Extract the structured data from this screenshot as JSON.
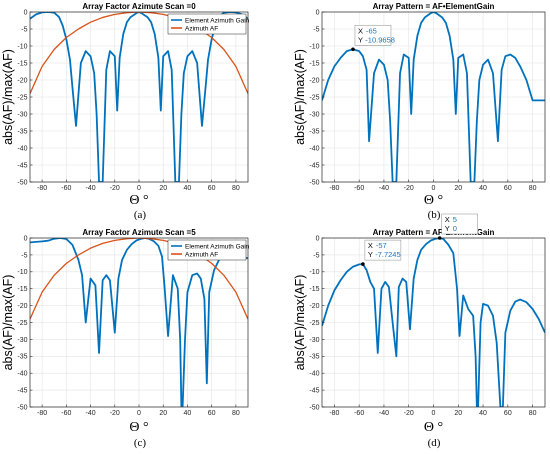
{
  "chart_data": [
    {
      "type": "line",
      "panel_label": "(a)",
      "title": "Array Factor Azimute Scan =0",
      "xlabel": "Θ °",
      "ylabel": "abs(AF)/max(AF)",
      "xlim": [
        -90,
        90
      ],
      "ylim": [
        -50,
        0
      ],
      "xticks": [
        -80,
        -60,
        -40,
        -20,
        0,
        20,
        40,
        60,
        80
      ],
      "yticks": [
        0,
        -5,
        -10,
        -15,
        -20,
        -25,
        -30,
        -35,
        -40,
        -45,
        -50
      ],
      "grid": true,
      "legend_position": "top-right",
      "series": [
        {
          "name": "Element Azimuth Gain",
          "color": "#0072BD",
          "x": [
            -90,
            -85,
            -80,
            -75,
            -70,
            -66,
            -63,
            -60,
            -57,
            -55,
            -52,
            -48,
            -44,
            -40,
            -37,
            -35,
            -33,
            -32,
            -30,
            -27,
            -24,
            -20,
            -18,
            -16,
            -13,
            -10,
            -7,
            -4,
            -2,
            0,
            2,
            4,
            7,
            10,
            13,
            16,
            18,
            20,
            24,
            27,
            30,
            32,
            33,
            35,
            37,
            40,
            44,
            48,
            52,
            55,
            57,
            60,
            63,
            66,
            70,
            75,
            80,
            85,
            90
          ],
          "y": [
            -2,
            -0.7,
            -0.1,
            0,
            -0.2,
            -1.5,
            -4,
            -8,
            -14,
            -22,
            -33.5,
            -15,
            -11.5,
            -13,
            -18,
            -30,
            -50,
            -50,
            -50,
            -17,
            -11.5,
            -13,
            -29,
            -13.5,
            -6.5,
            -3,
            -1.5,
            -0.8,
            -0.3,
            0,
            -0.3,
            -0.8,
            -1.5,
            -3,
            -6.5,
            -13.5,
            -29,
            -13,
            -11.5,
            -17,
            -50,
            -50,
            -50,
            -30,
            -18,
            -13,
            -11.5,
            -15,
            -33.5,
            -22,
            -14,
            -8,
            -4,
            -1.5,
            -0.2,
            0,
            -0.1,
            -0.7,
            -2
          ]
        },
        {
          "name": "Azimuth AF",
          "color": "#D95319",
          "x": [
            -90,
            -80,
            -70,
            -60,
            -50,
            -40,
            -30,
            -20,
            -10,
            0,
            10,
            20,
            30,
            40,
            50,
            60,
            70,
            80,
            90
          ],
          "y": [
            -24,
            -16,
            -11,
            -7.5,
            -5,
            -3,
            -1.6,
            -0.7,
            -0.2,
            0,
            -0.2,
            -0.7,
            -1.6,
            -3,
            -5,
            -7.5,
            -11,
            -16,
            -24
          ]
        }
      ]
    },
    {
      "type": "line",
      "panel_label": "(b)",
      "title": "Array Pattern = AF•ElementGain",
      "xlabel": "Θ °",
      "ylabel": "abs(AF)/max(AF)",
      "xlim": [
        -90,
        90
      ],
      "ylim": [
        -50,
        0
      ],
      "xticks": [
        -80,
        -60,
        -40,
        -20,
        0,
        20,
        40,
        60,
        80
      ],
      "yticks": [
        0,
        -5,
        -10,
        -15,
        -20,
        -25,
        -30,
        -35,
        -40,
        -45,
        -50
      ],
      "grid": true,
      "series": [
        {
          "name": "",
          "color": "#0072BD",
          "x": [
            -90,
            -85,
            -80,
            -75,
            -70,
            -65,
            -60,
            -57,
            -54,
            -52,
            -48,
            -44,
            -40,
            -37,
            -35,
            -33,
            -32,
            -30,
            -27,
            -24,
            -20,
            -18,
            -16,
            -13,
            -10,
            -7,
            -4,
            -2,
            0,
            2,
            4,
            7,
            10,
            13,
            16,
            18,
            20,
            24,
            27,
            30,
            32,
            33,
            35,
            37,
            40,
            44,
            48,
            52,
            55,
            58,
            62,
            66,
            70,
            75,
            80,
            85,
            90
          ],
          "y": [
            -26,
            -20,
            -16,
            -13.5,
            -11.5,
            -10.97,
            -11.5,
            -13,
            -17,
            -38,
            -18,
            -14,
            -15.5,
            -20,
            -32,
            -50,
            -50,
            -50,
            -18,
            -12.5,
            -13.5,
            -30,
            -14,
            -7,
            -3.2,
            -1.6,
            -0.8,
            -0.3,
            0,
            -0.3,
            -0.8,
            -1.6,
            -3.2,
            -7,
            -14,
            -30,
            -13.5,
            -12.5,
            -18,
            -50,
            -50,
            -50,
            -32,
            -20,
            -15.5,
            -14,
            -18,
            -38,
            -17,
            -13,
            -12.5,
            -13.5,
            -16,
            -20,
            -26,
            -26,
            -26
          ]
        }
      ],
      "datatip": {
        "x_label": "X",
        "x_value": "-65",
        "y_label": "Y",
        "y_value": "-10.9658",
        "px": -65,
        "py": -10.9658
      }
    },
    {
      "type": "line",
      "panel_label": "(c)",
      "title": "Array Factor Azimute Scan =5",
      "xlabel": "Θ °",
      "ylabel": "abs(AF)/max(AF)",
      "xlim": [
        -90,
        90
      ],
      "ylim": [
        -50,
        0
      ],
      "xticks": [
        -80,
        -60,
        -40,
        -20,
        0,
        20,
        40,
        60,
        80
      ],
      "yticks": [
        0,
        -5,
        -10,
        -15,
        -20,
        -25,
        -30,
        -35,
        -40,
        -45,
        -50
      ],
      "grid": true,
      "legend_position": "top-right",
      "series": [
        {
          "name": "Element Azimuth Gain",
          "color": "#0072BD",
          "x": [
            -90,
            -80,
            -75,
            -70,
            -65,
            -60,
            -55,
            -50,
            -47,
            -44,
            -40,
            -36,
            -33,
            -30,
            -27,
            -24,
            -20,
            -17,
            -14,
            -10,
            -6,
            -2,
            2,
            5,
            8,
            12,
            16,
            19,
            21,
            24,
            28,
            32,
            34,
            35,
            36,
            38,
            40,
            44,
            48,
            51,
            54,
            56,
            58,
            62,
            66,
            70,
            75,
            80,
            85,
            90
          ],
          "y": [
            -1.3,
            -1,
            -0.8,
            -0.2,
            0,
            -0.3,
            -2,
            -6.5,
            -11,
            -25,
            -12,
            -14,
            -34,
            -12.5,
            -11,
            -12.5,
            -28,
            -12,
            -6.5,
            -3.5,
            -1.8,
            -0.7,
            -0.2,
            0,
            -0.2,
            -0.9,
            -2.3,
            -5.5,
            -14,
            -29,
            -11,
            -15,
            -30,
            -50,
            -50,
            -30,
            -16,
            -11,
            -10.5,
            -12,
            -18,
            -43,
            -16,
            -9.5,
            -6.5,
            -4.5,
            -4,
            -4.5,
            -5.5,
            -6
          ]
        },
        {
          "name": "Azimuth AF",
          "color": "#D95319",
          "x": [
            -90,
            -80,
            -70,
            -60,
            -50,
            -40,
            -30,
            -20,
            -10,
            0,
            10,
            20,
            30,
            40,
            50,
            60,
            70,
            80,
            90
          ],
          "y": [
            -24,
            -16,
            -11,
            -7.5,
            -5,
            -3,
            -1.6,
            -0.7,
            -0.2,
            0,
            -0.2,
            -0.7,
            -1.6,
            -3,
            -5,
            -7.5,
            -11,
            -16,
            -24
          ]
        }
      ]
    },
    {
      "type": "line",
      "panel_label": "(d)",
      "title": "Array Pattern = AF•ElementGain",
      "xlabel": "Θ °",
      "ylabel": "abs(AF)/max(AF)",
      "xlim": [
        -90,
        90
      ],
      "ylim": [
        -50,
        0
      ],
      "xticks": [
        -80,
        -60,
        -40,
        -20,
        0,
        20,
        40,
        60,
        80
      ],
      "yticks": [
        0,
        -5,
        -10,
        -15,
        -20,
        -25,
        -30,
        -35,
        -40,
        -45,
        -50
      ],
      "grid": true,
      "series": [
        {
          "name": "",
          "color": "#0072BD",
          "x": [
            -90,
            -85,
            -80,
            -75,
            -70,
            -65,
            -60,
            -57,
            -54,
            -51,
            -48,
            -45,
            -42,
            -39,
            -36,
            -33,
            -30,
            -28,
            -25,
            -22,
            -19,
            -16,
            -13,
            -10,
            -6,
            -2,
            2,
            5,
            8,
            12,
            16,
            19,
            21,
            24,
            28,
            32,
            34,
            35,
            36,
            38,
            40,
            44,
            48,
            51,
            54,
            56,
            58,
            62,
            66,
            70,
            75,
            80,
            85,
            90
          ],
          "y": [
            -26,
            -20,
            -15.5,
            -12.5,
            -10,
            -8.5,
            -7.8,
            -7.72,
            -9.5,
            -13,
            -15,
            -34,
            -15,
            -13,
            -14.5,
            -25,
            -35,
            -14.5,
            -12,
            -13,
            -27,
            -12,
            -6.5,
            -3.5,
            -1.8,
            -0.7,
            -0.2,
            0,
            -0.3,
            -2,
            -4.5,
            -15,
            -29,
            -17,
            -21,
            -23,
            -35,
            -50,
            -50,
            -25,
            -19.5,
            -20,
            -23,
            -31,
            -50,
            -50,
            -28,
            -21.5,
            -18.8,
            -18.2,
            -19,
            -21,
            -24,
            -28
          ]
        }
      ],
      "datatips": [
        {
          "x_label": "X",
          "x_value": "-57",
          "y_label": "Y",
          "y_value": "-7.7245",
          "px": -57,
          "py": -7.7245
        },
        {
          "x_label": "X",
          "x_value": "5",
          "y_label": "Y",
          "y_value": "0",
          "px": 5,
          "py": 0
        }
      ]
    }
  ]
}
